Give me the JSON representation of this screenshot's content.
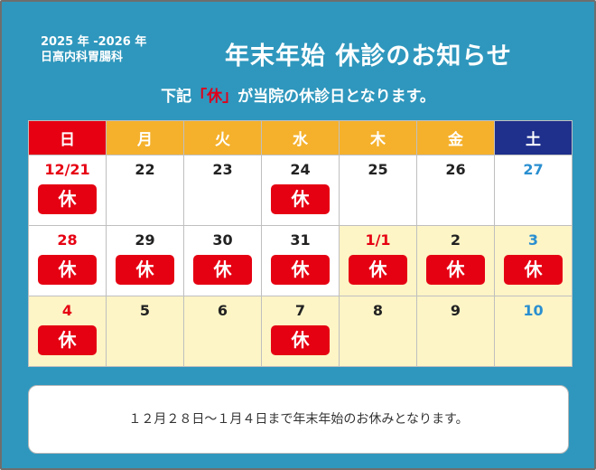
{
  "clinic": {
    "line1": "2025 年 -2026 年",
    "line2": "日高内科胃腸科"
  },
  "title": "年末年始 休診のお知らせ",
  "subtitle": {
    "before": "下記",
    "highlight": "「休」",
    "after": "が当院の休診日となります。"
  },
  "weekdays": [
    "日",
    "月",
    "火",
    "水",
    "木",
    "金",
    "土"
  ],
  "weeks": [
    [
      {
        "day": "12/21",
        "color": "red",
        "closed": true,
        "holiday": false
      },
      {
        "day": "22",
        "color": "black",
        "closed": false,
        "holiday": false
      },
      {
        "day": "23",
        "color": "black",
        "closed": false,
        "holiday": false
      },
      {
        "day": "24",
        "color": "black",
        "closed": true,
        "holiday": false
      },
      {
        "day": "25",
        "color": "black",
        "closed": false,
        "holiday": false
      },
      {
        "day": "26",
        "color": "black",
        "closed": false,
        "holiday": false
      },
      {
        "day": "27",
        "color": "blue",
        "closed": false,
        "holiday": false
      }
    ],
    [
      {
        "day": "28",
        "color": "red",
        "closed": true,
        "holiday": false
      },
      {
        "day": "29",
        "color": "black",
        "closed": true,
        "holiday": false
      },
      {
        "day": "30",
        "color": "black",
        "closed": true,
        "holiday": false
      },
      {
        "day": "31",
        "color": "black",
        "closed": true,
        "holiday": false
      },
      {
        "day": "1/1",
        "color": "red",
        "closed": true,
        "holiday": true
      },
      {
        "day": "2",
        "color": "black",
        "closed": true,
        "holiday": true
      },
      {
        "day": "3",
        "color": "blue",
        "closed": true,
        "holiday": true
      }
    ],
    [
      {
        "day": "4",
        "color": "red",
        "closed": true,
        "holiday": true
      },
      {
        "day": "5",
        "color": "black",
        "closed": false,
        "holiday": true
      },
      {
        "day": "6",
        "color": "black",
        "closed": false,
        "holiday": true
      },
      {
        "day": "7",
        "color": "black",
        "closed": true,
        "holiday": true
      },
      {
        "day": "8",
        "color": "black",
        "closed": false,
        "holiday": true
      },
      {
        "day": "9",
        "color": "black",
        "closed": false,
        "holiday": true
      },
      {
        "day": "10",
        "color": "blue",
        "closed": false,
        "holiday": true
      }
    ]
  ],
  "closed_label": "休",
  "notice": "１２月２８日～１月４日まで年末年始のお休みとなります。",
  "colors": {
    "background": "#2f97bd",
    "sunday": "#e60012",
    "weekday": "#f5b12c",
    "saturday": "#1e2f8c",
    "closed": "#e50012",
    "holiday_cell": "#fdf5c6"
  }
}
